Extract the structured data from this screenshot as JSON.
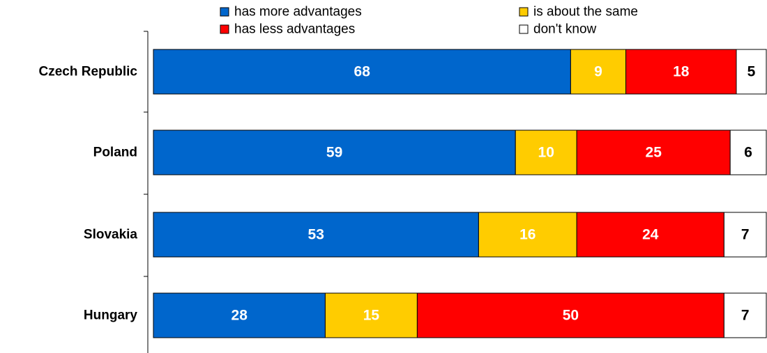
{
  "chart_data": {
    "type": "bar",
    "orientation": "horizontal",
    "stacked": true,
    "categories": [
      "Czech Republic",
      "Poland",
      "Slovakia",
      "Hungary"
    ],
    "series": [
      {
        "name": "has more advantages",
        "color": "#0066CC",
        "values": [
          68,
          59,
          53,
          28
        ]
      },
      {
        "name": "is about the same",
        "color": "#FFCC00",
        "values": [
          9,
          10,
          16,
          15
        ]
      },
      {
        "name": "has less advantages",
        "color": "#FF0000",
        "values": [
          18,
          25,
          24,
          50
        ]
      },
      {
        "name": "don't know",
        "color": "#FFFFFF",
        "values": [
          5,
          6,
          7,
          7
        ]
      }
    ],
    "xlim": [
      0,
      100
    ],
    "grid": false,
    "legend_position": "top"
  }
}
